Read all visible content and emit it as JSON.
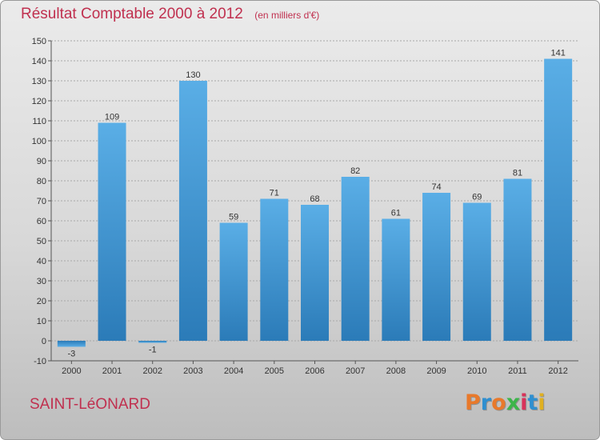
{
  "header": {
    "title": "Résultat Comptable 2000 à 2012",
    "subtitle": "(en milliers d'€)"
  },
  "footer": {
    "city": "SAINT-LéONARD",
    "logo_text": "Proxiti",
    "logo_colors": [
      "#e8792b",
      "#2f8fd0",
      "#e8792b",
      "#3cb54a",
      "#d8325a",
      "#2f8fd0",
      "#e0b020"
    ]
  },
  "colors": {
    "title": "#c0304f",
    "bar_light": "#5aaee6",
    "bar_dark": "#2b7bb8"
  },
  "chart_data": {
    "type": "bar",
    "title": "Résultat Comptable 2000 à 2012",
    "subtitle": "(en milliers d'€)",
    "xlabel": "",
    "ylabel": "",
    "categories": [
      "2000",
      "2001",
      "2002",
      "2003",
      "2004",
      "2005",
      "2006",
      "2007",
      "2008",
      "2009",
      "2010",
      "2011",
      "2012"
    ],
    "values": [
      -3,
      109,
      -1,
      130,
      59,
      71,
      68,
      82,
      61,
      74,
      69,
      81,
      141
    ],
    "data_labels": [
      "-3",
      "109",
      "-1",
      "130",
      "59",
      "71",
      "68",
      "82",
      "61",
      "74",
      "69",
      "81",
      "141"
    ],
    "ylim": [
      -10,
      150
    ],
    "yticks": [
      -10,
      0,
      10,
      20,
      30,
      40,
      50,
      60,
      70,
      80,
      90,
      100,
      110,
      120,
      130,
      140,
      150
    ],
    "grid": true,
    "legend": "none"
  }
}
